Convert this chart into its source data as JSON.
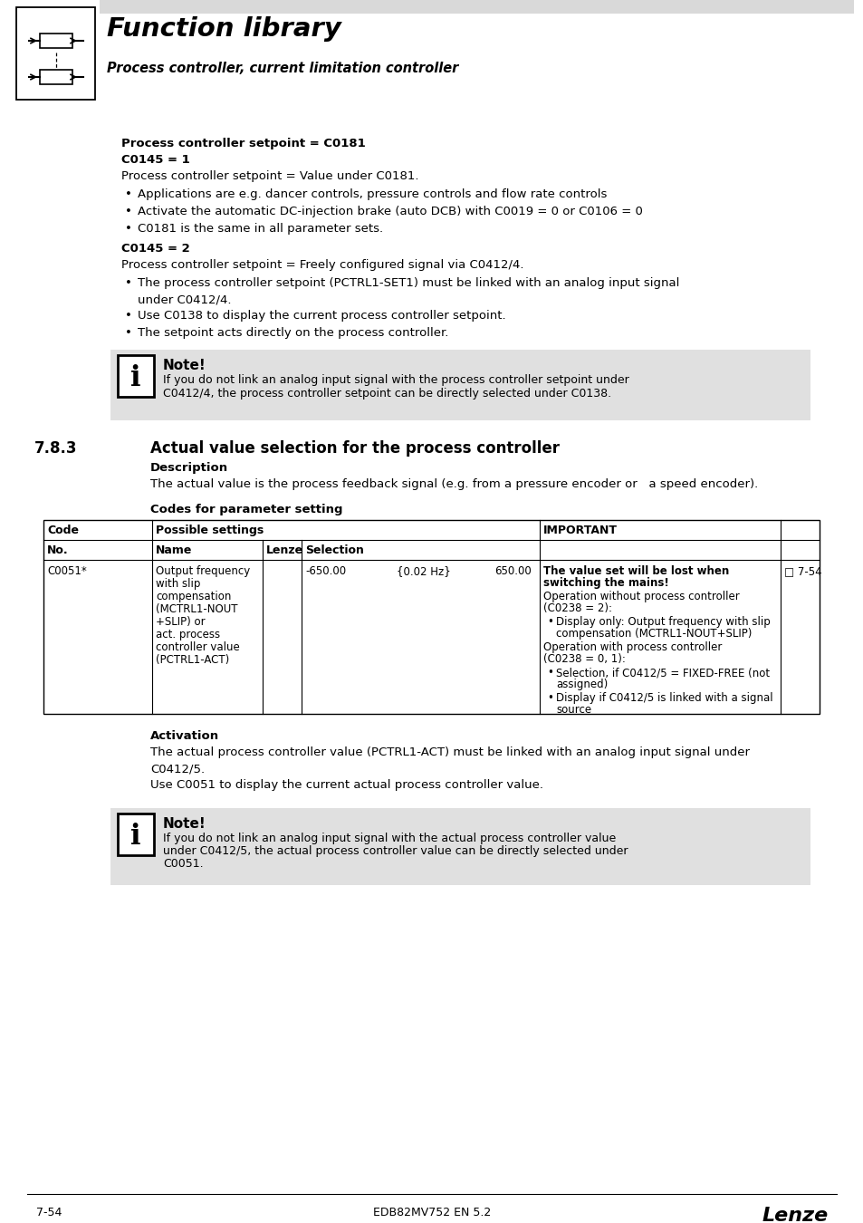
{
  "page_bg": "#ffffff",
  "header_bg": "#d9d9d9",
  "header_title": "Function library",
  "header_subtitle": "Process controller, current limitation controller",
  "section_label": "7.8.3",
  "section_title": "Actual value selection for the process controller",
  "body_text_color": "#000000",
  "note_bg": "#e0e0e0",
  "footer_left": "7-54",
  "footer_center": "EDB82MV752 EN 5.2",
  "footer_right": "Lenze",
  "bold_line1": "Process controller setpoint = C0181",
  "bold_c0145_1": "C0145 = 1",
  "normal_c0145_1": "Process controller setpoint = Value under C0181.",
  "bullets1": [
    "Applications are e.g. dancer controls, pressure controls and flow rate controls",
    "Activate the automatic DC-injection brake (auto DCB) with C0019 = 0 or C0106 = 0",
    "C0181 is the same in all parameter sets."
  ],
  "bold_c0145_2": "C0145 = 2",
  "normal_c0145_2": "Process controller setpoint = Freely configured signal via C0412/4.",
  "bullets2_line1": "The process controller setpoint (PCTRL1-SET1) must be linked with an analog input signal",
  "bullets2_line1b": "under C0412/4.",
  "bullets2_line2": "Use C0138 to display the current process controller setpoint.",
  "bullets2_line3": "The setpoint acts directly on the process controller.",
  "note1_title": "Note!",
  "note1_text1": "If you do not link an analog input signal with the process controller setpoint under",
  "note1_text2": "C0412/4, the process controller setpoint can be directly selected under C0138.",
  "desc_label": "Description",
  "desc_text": "The actual value is the process feedback signal (e.g. from a pressure encoder or   a speed encoder).",
  "codes_label": "Codes for parameter setting",
  "table_code": "C0051*",
  "table_name_lines": [
    "Output frequency",
    "with slip",
    "compensation",
    "(MCTRL1-NOUT",
    "+SLIP) or",
    "act. process",
    "controller value",
    "(PCTRL1-ACT)"
  ],
  "table_sel_min": "-650.00",
  "table_sel_step": "{0.02 Hz}",
  "table_sel_max": "650.00",
  "imp_bold1": "The value set will be lost when",
  "imp_bold2": "switching the mains!",
  "imp_norm1": "Operation without process controller",
  "imp_norm2": "(C0238 = 2):",
  "imp_b1a": "Display only: Output frequency with slip",
  "imp_b1b": "compensation (MCTRL1-NOUT+SLIP)",
  "imp_norm3": "Operation with process controller",
  "imp_norm4": "(C0238 = 0, 1):",
  "imp_b2a": "Selection, if C0412/5 = FIXED-FREE (not",
  "imp_b2b": "assigned)",
  "imp_b3a": "Display if C0412/5 is linked with a signal",
  "imp_b3b": "source",
  "imp_ref": "□ 7-54",
  "activation_label": "Activation",
  "act_text1": "The actual process controller value (PCTRL1-ACT) must be linked with an analog input signal under",
  "act_text1b": "C0412/5.",
  "act_text2": "Use C0051 to display the current actual process controller value.",
  "note2_title": "Note!",
  "note2_text1": "If you do not link an analog input signal with the actual process controller value",
  "note2_text2": "under C0412/5, the actual process controller value can be directly selected under",
  "note2_text3": "C0051."
}
